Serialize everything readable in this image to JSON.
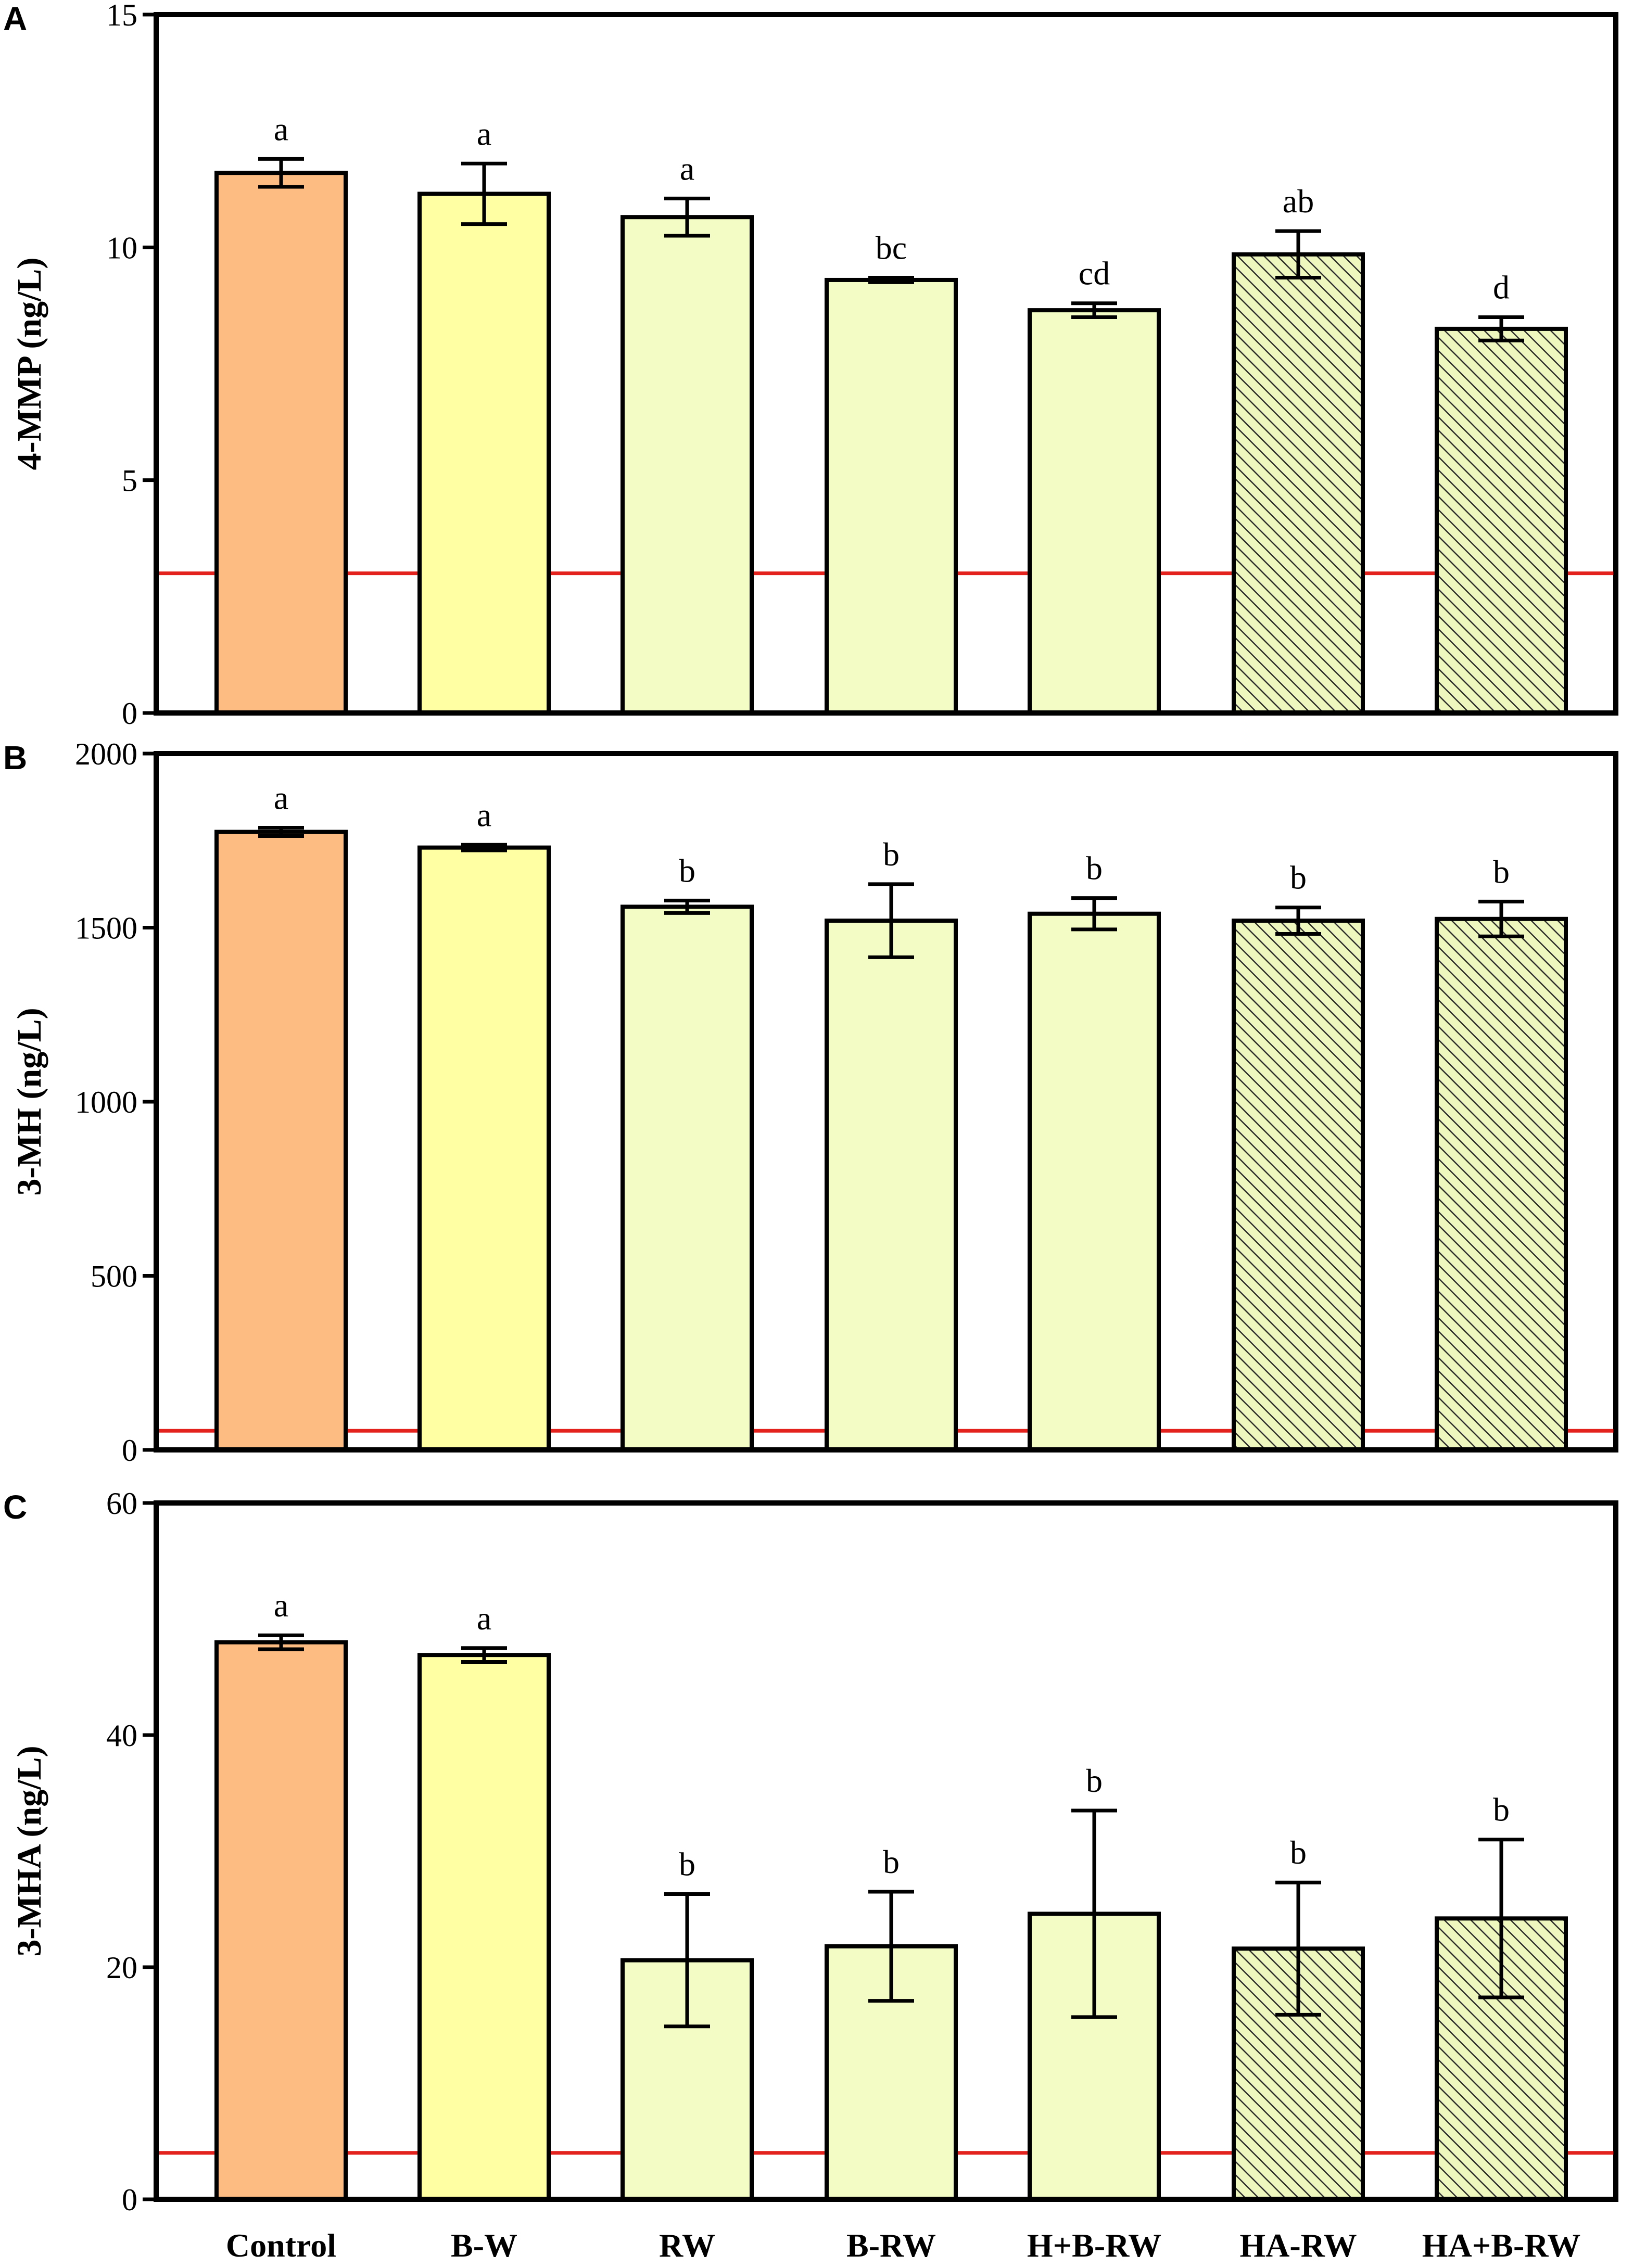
{
  "chart_data": [
    {
      "type": "bar",
      "panel": "A",
      "ylabel": "4-MMP (ng/L)",
      "ylim": [
        0,
        15
      ],
      "yticks": [
        0,
        5,
        10,
        15
      ],
      "categories": [
        "Control",
        "B-W",
        "RW",
        "B-RW",
        "H+B-RW",
        "HA-RW",
        "HA+B-RW"
      ],
      "values": [
        11.6,
        11.15,
        10.65,
        9.3,
        8.65,
        9.85,
        8.25
      ],
      "errors": [
        0.3,
        0.65,
        0.4,
        0.05,
        0.15,
        0.5,
        0.25
      ],
      "significance": [
        "a",
        "a",
        "a",
        "bc",
        "cd",
        "ab",
        "d"
      ],
      "reference_line": 3.0
    },
    {
      "type": "bar",
      "panel": "B",
      "ylabel": "3-MH (ng/L)",
      "ylim": [
        0,
        2000
      ],
      "yticks": [
        0,
        500,
        1000,
        1500,
        2000
      ],
      "categories": [
        "Control",
        "B-W",
        "RW",
        "B-RW",
        "H+B-RW",
        "HA-RW",
        "HA+B-RW"
      ],
      "values": [
        1775,
        1730,
        1560,
        1520,
        1540,
        1520,
        1525
      ],
      "errors": [
        12,
        8,
        18,
        105,
        45,
        38,
        50
      ],
      "significance": [
        "a",
        "a",
        "b",
        "b",
        "b",
        "b",
        "b"
      ],
      "reference_line": 55
    },
    {
      "type": "bar",
      "panel": "C",
      "ylabel": "3-MHA (ng/L)",
      "ylim": [
        0,
        60
      ],
      "yticks": [
        0,
        20,
        40,
        60
      ],
      "categories": [
        "Control",
        "B-W",
        "RW",
        "B-RW",
        "H+B-RW",
        "HA-RW",
        "HA+B-RW"
      ],
      "values": [
        48.0,
        46.9,
        20.6,
        21.8,
        24.6,
        21.6,
        24.2
      ],
      "errors": [
        0.6,
        0.6,
        5.7,
        4.7,
        8.9,
        5.7,
        6.8
      ],
      "significance": [
        "a",
        "a",
        "b",
        "b",
        "b",
        "b",
        "b"
      ],
      "reference_line": 4.0
    }
  ],
  "colors": {
    "control": "#FDBC81",
    "bw": "#FFFFA4",
    "light": "#F2FCC4",
    "hatch_fill": "#EEF7BE",
    "hatch_line": "#2B2B2B",
    "reference": "#E3221D",
    "axis": "#000000"
  },
  "bar_styles": [
    "control",
    "bw",
    "light",
    "light",
    "light",
    "hatch",
    "hatch"
  ]
}
